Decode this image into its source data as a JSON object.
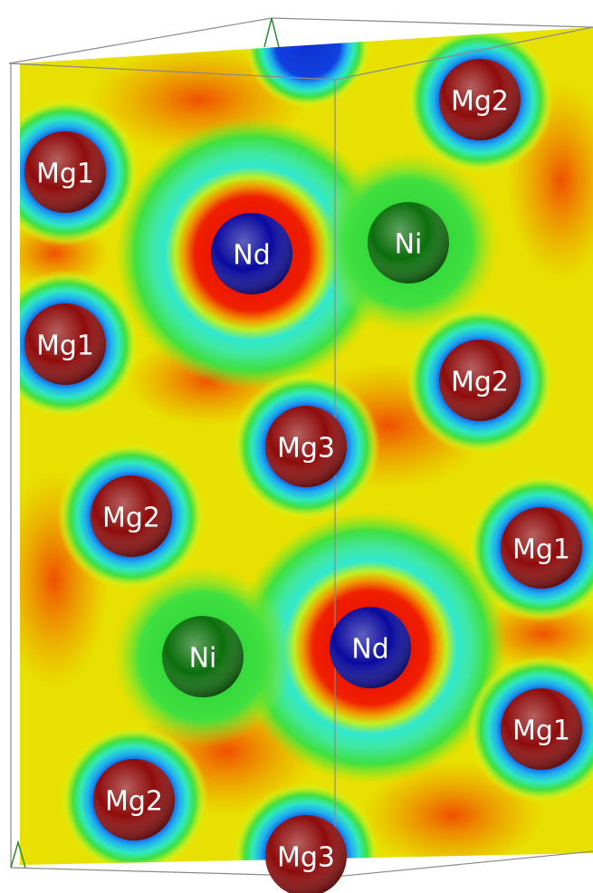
{
  "atoms": [
    {
      "label": "Mg2",
      "color": "#8e0b0b"
    },
    {
      "label": "Mg1",
      "color": "#8e0b0b"
    },
    {
      "label": "Nd",
      "color": "#0a0a9e"
    },
    {
      "label": "Ni",
      "color": "#0b6e0b"
    },
    {
      "label": "Mg1",
      "color": "#8e0b0b"
    },
    {
      "label": "Mg2",
      "color": "#8e0b0b"
    },
    {
      "label": "Mg3",
      "color": "#8e0b0b"
    },
    {
      "label": "Mg2",
      "color": "#8e0b0b"
    },
    {
      "label": "Mg1",
      "color": "#8e0b0b"
    },
    {
      "label": "Nd",
      "color": "#0a0a9e"
    },
    {
      "label": "Ni",
      "color": "#0b6e0b"
    },
    {
      "label": "Mg1",
      "color": "#8e0b0b"
    },
    {
      "label": "Mg2",
      "color": "#8e0b0b"
    },
    {
      "label": "Mg3",
      "color": "#8e0b0b"
    }
  ]
}
